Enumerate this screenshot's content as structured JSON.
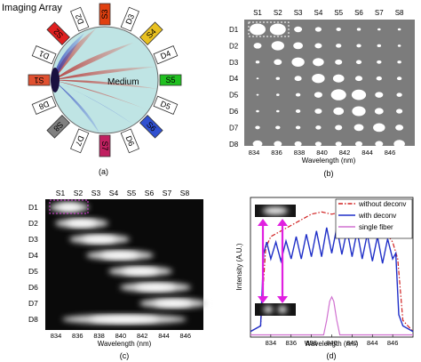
{
  "panel_a": {
    "title": "Imaging Array",
    "medium_label": "Medium",
    "caption": "(a)",
    "detectors": [
      "D1",
      "D2",
      "D3",
      "D4",
      "D5",
      "D6",
      "D7",
      "D8"
    ],
    "sources": [
      "S1",
      "S2",
      "S3",
      "S4",
      "S5",
      "S6",
      "S7",
      "S8"
    ],
    "source_colors": [
      "#e05030",
      "#e02020",
      "#e04010",
      "#e8c020",
      "#20c020",
      "#3050d0",
      "#c02060",
      "#808080"
    ]
  },
  "panel_b": {
    "caption": "(b)",
    "xlabel": "Wavelength (nm)",
    "source_labels": [
      "S1",
      "S2",
      "S3",
      "S4",
      "S5",
      "S6",
      "S7",
      "S8"
    ],
    "detector_labels": [
      "D1",
      "D2",
      "D3",
      "D4",
      "D5",
      "D6",
      "D7",
      "D8"
    ],
    "tick_labels": [
      "834",
      "836",
      "838",
      "840",
      "842",
      "844",
      "846"
    ],
    "spot_sizes": [
      [
        1.0,
        1.0,
        0.5,
        0.4,
        0.3,
        0.25,
        0.2,
        0.2
      ],
      [
        0.5,
        0.8,
        0.6,
        0.45,
        0.35,
        0.3,
        0.25,
        0.2
      ],
      [
        0.25,
        0.5,
        0.8,
        0.7,
        0.45,
        0.35,
        0.3,
        0.25
      ],
      [
        0.15,
        0.25,
        0.45,
        0.8,
        0.7,
        0.45,
        0.35,
        0.3
      ],
      [
        0.15,
        0.2,
        0.3,
        0.5,
        0.95,
        0.9,
        0.5,
        0.35
      ],
      [
        0.2,
        0.2,
        0.3,
        0.45,
        0.65,
        0.85,
        0.55,
        0.4
      ],
      [
        0.3,
        0.3,
        0.3,
        0.35,
        0.45,
        0.6,
        0.75,
        0.5
      ],
      [
        0.6,
        0.5,
        0.45,
        0.4,
        0.4,
        0.45,
        0.5,
        0.7
      ]
    ]
  },
  "panel_c": {
    "caption": "(c)",
    "xlabel": "Wavelength (nm)",
    "source_labels": [
      "S1",
      "S2",
      "S3",
      "S4",
      "S5",
      "S6",
      "S7",
      "S8"
    ],
    "detector_labels": [
      "D1",
      "D2",
      "D3",
      "D4",
      "D5",
      "D6",
      "D7",
      "D8"
    ],
    "tick_labels": [
      "834",
      "836",
      "838",
      "840",
      "842",
      "844",
      "846"
    ]
  },
  "panel_d": {
    "caption": "(d)",
    "chart_data": {
      "type": "line",
      "xlabel": "Wavelength (nm)",
      "ylabel": "Intensity (A.U.)",
      "xlim": [
        832,
        848
      ],
      "ylim": [
        0,
        1.25
      ],
      "xticks": [
        "834",
        "836",
        "838",
        "840",
        "842",
        "844",
        "846"
      ],
      "legend_position": "top-right",
      "series": [
        {
          "name": "without deconv",
          "color": "#d02020",
          "style": "dashdot",
          "x": [
            832,
            833,
            833.5,
            834,
            835,
            836,
            837,
            838,
            839,
            840,
            841,
            842,
            843,
            844,
            845,
            846,
            846.5,
            847,
            848
          ],
          "y": [
            0.05,
            0.1,
            0.8,
            0.9,
            0.95,
            1.0,
            1.05,
            1.1,
            1.12,
            1.1,
            1.12,
            1.1,
            1.05,
            1.02,
            0.98,
            0.85,
            0.7,
            0.15,
            0.05
          ]
        },
        {
          "name": "with deconv",
          "color": "#1f2fc8",
          "style": "solid",
          "x": [
            832,
            833,
            833.3,
            833.6,
            834,
            834.5,
            835,
            835.5,
            836,
            836.5,
            837,
            837.5,
            838,
            838.5,
            839,
            839.5,
            840,
            840.5,
            841,
            841.5,
            842,
            842.5,
            843,
            843.5,
            844,
            844.5,
            845,
            845.5,
            846,
            846.3,
            846.6,
            847,
            848
          ],
          "y": [
            0.05,
            0.1,
            0.75,
            0.85,
            0.7,
            0.85,
            0.68,
            0.86,
            0.7,
            0.9,
            0.7,
            0.92,
            0.72,
            0.95,
            0.72,
            0.98,
            0.75,
            0.98,
            0.74,
            0.96,
            0.72,
            0.95,
            0.7,
            0.92,
            0.68,
            0.9,
            0.66,
            0.88,
            0.7,
            0.75,
            0.2,
            0.1,
            0.05
          ]
        },
        {
          "name": "single fiber",
          "color": "#d070d0",
          "style": "solid",
          "x": [
            832,
            839.2,
            839.5,
            839.8,
            840,
            840.2,
            840.5,
            840.8,
            848
          ],
          "y": [
            0.02,
            0.02,
            0.15,
            0.32,
            0.36,
            0.32,
            0.15,
            0.02,
            0.02
          ]
        }
      ]
    }
  }
}
